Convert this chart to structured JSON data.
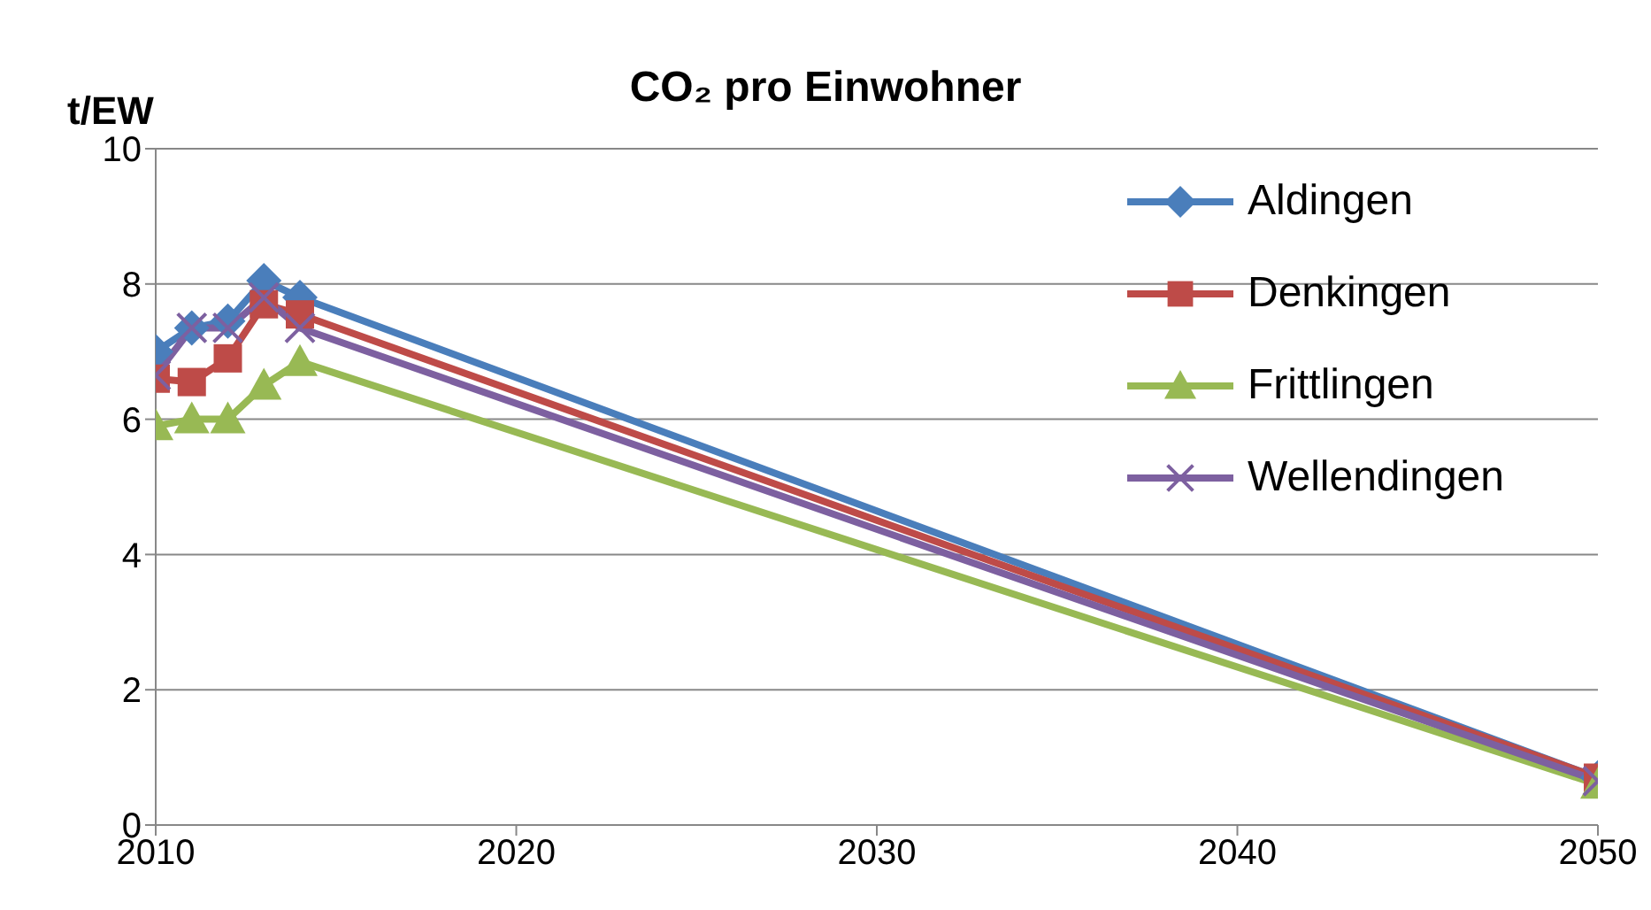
{
  "chart_data": {
    "type": "line",
    "title": "CO₂ pro Einwohner",
    "ylabel": "t/EW",
    "x": [
      2010,
      2011,
      2012,
      2013,
      2014,
      2050
    ],
    "xlim": [
      2010,
      2050
    ],
    "xticks": [
      2010,
      2020,
      2030,
      2040,
      2050
    ],
    "ylim": [
      0,
      10
    ],
    "yticks": [
      0,
      2,
      4,
      6,
      8,
      10
    ],
    "grid": "y",
    "legend": "top right",
    "series": [
      {
        "name": "Aldingen",
        "color": "#4a7ebb",
        "marker": "diamond",
        "values": [
          7.0,
          7.35,
          7.45,
          8.05,
          7.8,
          0.7
        ]
      },
      {
        "name": "Denkingen",
        "color": "#be4b48",
        "marker": "square",
        "values": [
          6.6,
          6.55,
          6.9,
          7.7,
          7.55,
          0.7
        ]
      },
      {
        "name": "Frittlingen",
        "color": "#98b954",
        "marker": "triangle",
        "values": [
          5.9,
          6.0,
          6.0,
          6.5,
          6.85,
          0.6
        ]
      },
      {
        "name": "Wellendingen",
        "color": "#7d60a0",
        "marker": "cross",
        "values": [
          6.65,
          7.35,
          7.35,
          7.8,
          7.35,
          0.65
        ]
      }
    ]
  }
}
